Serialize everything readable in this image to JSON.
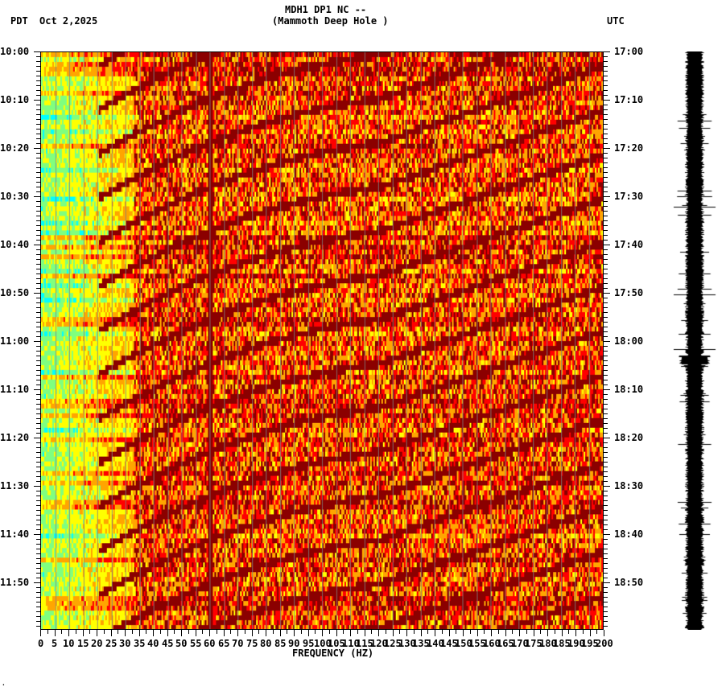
{
  "header": {
    "station": "MDH1 DP1 NC --",
    "location": "(Mammoth Deep Hole )",
    "left_tz": "PDT",
    "date": "Oct 2,2025",
    "right_tz": "UTC"
  },
  "chart_data": {
    "type": "heatmap",
    "title": "MDH1 DP1 NC -- (Mammoth Deep Hole )",
    "xlabel": "FREQUENCY (HZ)",
    "ylabel_left": "PDT",
    "ylabel_right": "UTC",
    "xlim": [
      0,
      200
    ],
    "x_ticks": [
      0,
      5,
      10,
      15,
      20,
      25,
      30,
      35,
      40,
      45,
      50,
      55,
      60,
      65,
      70,
      75,
      80,
      85,
      90,
      95,
      100,
      105,
      110,
      115,
      120,
      125,
      130,
      135,
      140,
      145,
      150,
      155,
      160,
      165,
      170,
      175,
      180,
      185,
      190,
      195,
      200
    ],
    "y_ticks_left": [
      "10:00",
      "10:10",
      "10:20",
      "10:30",
      "10:40",
      "10:50",
      "11:00",
      "11:10",
      "11:20",
      "11:30",
      "11:40",
      "11:50"
    ],
    "y_ticks_right": [
      "17:00",
      "17:10",
      "17:20",
      "17:30",
      "17:40",
      "17:50",
      "18:00",
      "18:10",
      "18:20",
      "18:30",
      "18:40",
      "18:50"
    ],
    "colormap": [
      "#1E90FF",
      "#00FFFF",
      "#7FFF7F",
      "#FFFF00",
      "#FFA500",
      "#FF0000",
      "#8B0000"
    ],
    "features": "Low frequencies (0-35 Hz) mostly cyan/blue (low power); above ~35 Hz red/orange/yellow; strong dark-red line at 60 Hz; recurring dark-red curved bands sweeping from ~25 Hz to high frequency about every 8-10 minutes; side panel shows seismogram trace."
  },
  "footer": {
    "mark": "·"
  }
}
